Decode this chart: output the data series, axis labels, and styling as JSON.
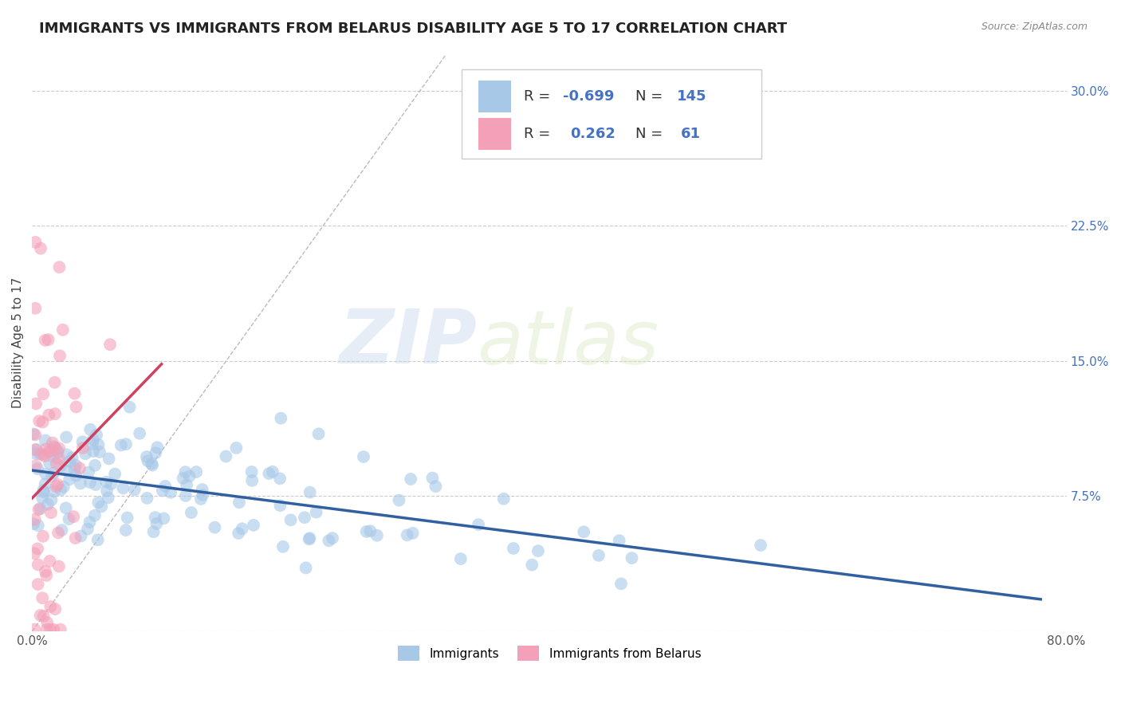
{
  "title": "IMMIGRANTS VS IMMIGRANTS FROM BELARUS DISABILITY AGE 5 TO 17 CORRELATION CHART",
  "source_text": "Source: ZipAtlas.com",
  "ylabel": "Disability Age 5 to 17",
  "xlim": [
    0.0,
    0.8
  ],
  "ylim": [
    0.0,
    0.32
  ],
  "xticks": [
    0.0,
    0.2,
    0.4,
    0.6,
    0.8
  ],
  "xticklabels": [
    "0.0%",
    "",
    "",
    "",
    "80.0%"
  ],
  "yticks": [
    0.0,
    0.075,
    0.15,
    0.225,
    0.3
  ],
  "yticklabels": [
    "",
    "7.5%",
    "15.0%",
    "22.5%",
    "30.0%"
  ],
  "R_blue": -0.699,
  "N_blue": 145,
  "R_pink": 0.262,
  "N_pink": 61,
  "blue_color": "#a8c8e8",
  "pink_color": "#f4a0b8",
  "blue_line_color": "#3060a0",
  "pink_line_color": "#d04060",
  "blue_scatter_alpha": 0.6,
  "pink_scatter_alpha": 0.6,
  "watermark_zip": "ZIP",
  "watermark_atlas": "atlas",
  "legend_blue_label": "Immigrants",
  "legend_pink_label": "Immigrants from Belarus",
  "grid_color": "#cccccc",
  "background_color": "#ffffff",
  "title_fontsize": 13,
  "axis_label_fontsize": 11,
  "tick_fontsize": 11,
  "legend_fontsize": 13
}
